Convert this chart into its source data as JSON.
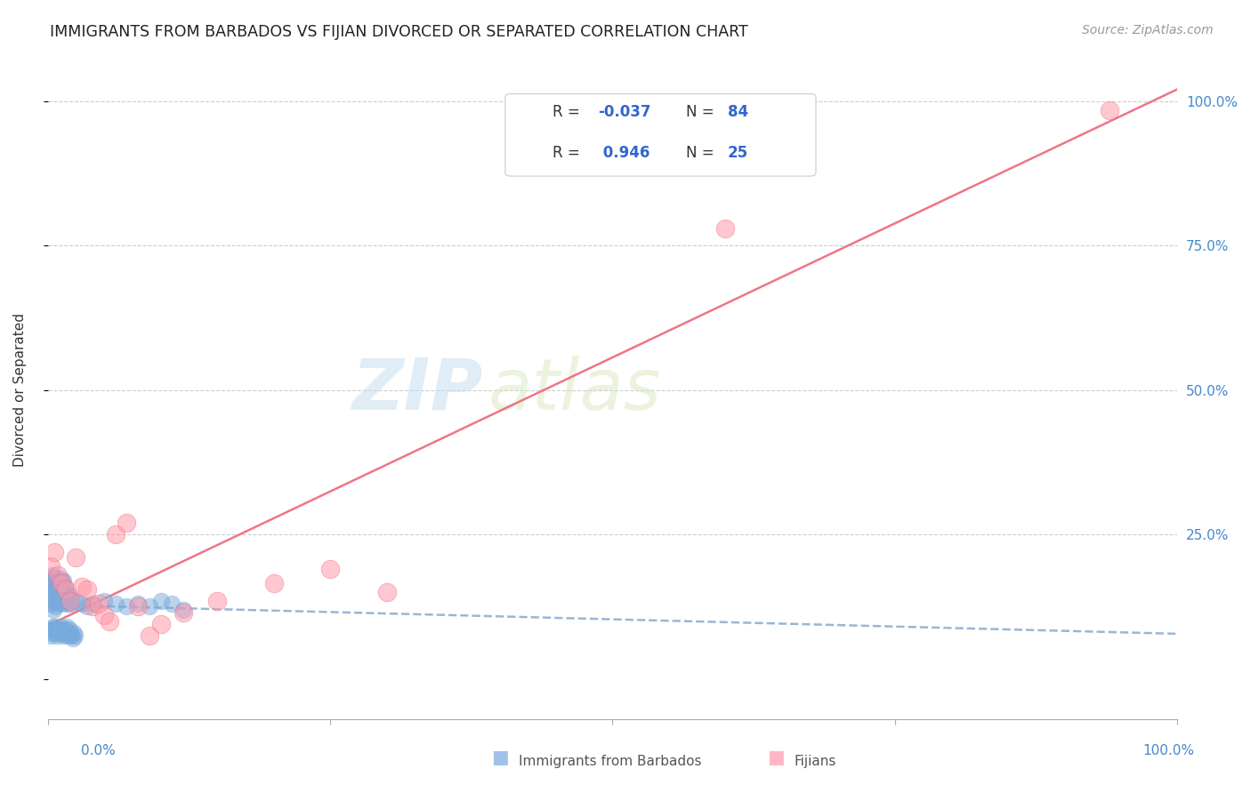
{
  "title": "IMMIGRANTS FROM BARBADOS VS FIJIAN DIVORCED OR SEPARATED CORRELATION CHART",
  "source": "Source: ZipAtlas.com",
  "ylabel": "Divorced or Separated",
  "xlim": [
    0.0,
    1.0
  ],
  "ylim": [
    -0.07,
    1.07
  ],
  "color_blue": "#77AADD",
  "color_pink": "#FF99AA",
  "color_blue_line": "#88AACC",
  "color_pink_line": "#EE6677",
  "watermark_zip": "ZIP",
  "watermark_atlas": "atlas",
  "blue_scatter_x": [
    0.001,
    0.002,
    0.003,
    0.004,
    0.005,
    0.006,
    0.007,
    0.008,
    0.009,
    0.01,
    0.011,
    0.012,
    0.013,
    0.014,
    0.015,
    0.016,
    0.017,
    0.018,
    0.019,
    0.02,
    0.002,
    0.003,
    0.004,
    0.005,
    0.006,
    0.007,
    0.008,
    0.009,
    0.01,
    0.012,
    0.014,
    0.016,
    0.018,
    0.02,
    0.025,
    0.03,
    0.035,
    0.04,
    0.05,
    0.06,
    0.07,
    0.08,
    0.09,
    0.1,
    0.11,
    0.12,
    0.002,
    0.003,
    0.004,
    0.005,
    0.006,
    0.007,
    0.008,
    0.009,
    0.01,
    0.011,
    0.012,
    0.013,
    0.014,
    0.015,
    0.001,
    0.002,
    0.003,
    0.004,
    0.005,
    0.006,
    0.007,
    0.008,
    0.009,
    0.01,
    0.011,
    0.012,
    0.013,
    0.014,
    0.015,
    0.016,
    0.017,
    0.018,
    0.019,
    0.02,
    0.021,
    0.022,
    0.023,
    0.024
  ],
  "blue_scatter_y": [
    0.145,
    0.15,
    0.13,
    0.14,
    0.12,
    0.135,
    0.125,
    0.14,
    0.13,
    0.145,
    0.135,
    0.14,
    0.13,
    0.145,
    0.15,
    0.135,
    0.14,
    0.13,
    0.145,
    0.135,
    0.16,
    0.155,
    0.165,
    0.15,
    0.16,
    0.155,
    0.145,
    0.15,
    0.14,
    0.145,
    0.14,
    0.135,
    0.14,
    0.13,
    0.135,
    0.13,
    0.125,
    0.13,
    0.135,
    0.13,
    0.125,
    0.13,
    0.125,
    0.135,
    0.13,
    0.12,
    0.17,
    0.175,
    0.18,
    0.17,
    0.175,
    0.165,
    0.17,
    0.16,
    0.175,
    0.165,
    0.17,
    0.165,
    0.17,
    0.16,
    0.08,
    0.085,
    0.075,
    0.09,
    0.085,
    0.08,
    0.09,
    0.075,
    0.085,
    0.08,
    0.09,
    0.085,
    0.08,
    0.075,
    0.085,
    0.08,
    0.09,
    0.075,
    0.085,
    0.08,
    0.075,
    0.07,
    0.08,
    0.075
  ],
  "pink_scatter_x": [
    0.003,
    0.006,
    0.009,
    0.012,
    0.016,
    0.02,
    0.025,
    0.03,
    0.035,
    0.04,
    0.045,
    0.05,
    0.055,
    0.06,
    0.07,
    0.08,
    0.09,
    0.1,
    0.12,
    0.15,
    0.2,
    0.25,
    0.3,
    0.6,
    0.94
  ],
  "pink_scatter_y": [
    0.195,
    0.22,
    0.18,
    0.165,
    0.155,
    0.135,
    0.21,
    0.16,
    0.155,
    0.125,
    0.13,
    0.11,
    0.1,
    0.25,
    0.27,
    0.125,
    0.075,
    0.095,
    0.115,
    0.135,
    0.165,
    0.19,
    0.15,
    0.78,
    0.985
  ]
}
